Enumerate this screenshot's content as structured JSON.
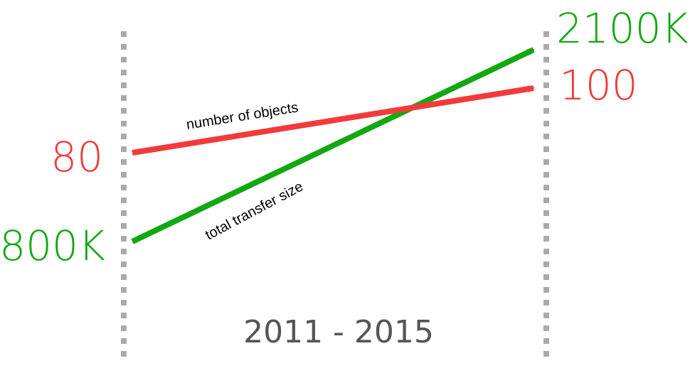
{
  "chart_data": {
    "type": "line",
    "title": "",
    "period_label": "2011 - 2015",
    "x": [
      "2011",
      "2015"
    ],
    "series": [
      {
        "name": "number of objects",
        "values": [
          80,
          100
        ],
        "value_labels": [
          "80",
          "100"
        ],
        "color": "#f23a3a"
      },
      {
        "name": "total transfer size",
        "values": [
          800000,
          2100000
        ],
        "value_labels": [
          "800K",
          "2100K"
        ],
        "color": "#12a812"
      }
    ],
    "axis_color": "#aaaaaa",
    "grid": false,
    "legend": "none"
  }
}
